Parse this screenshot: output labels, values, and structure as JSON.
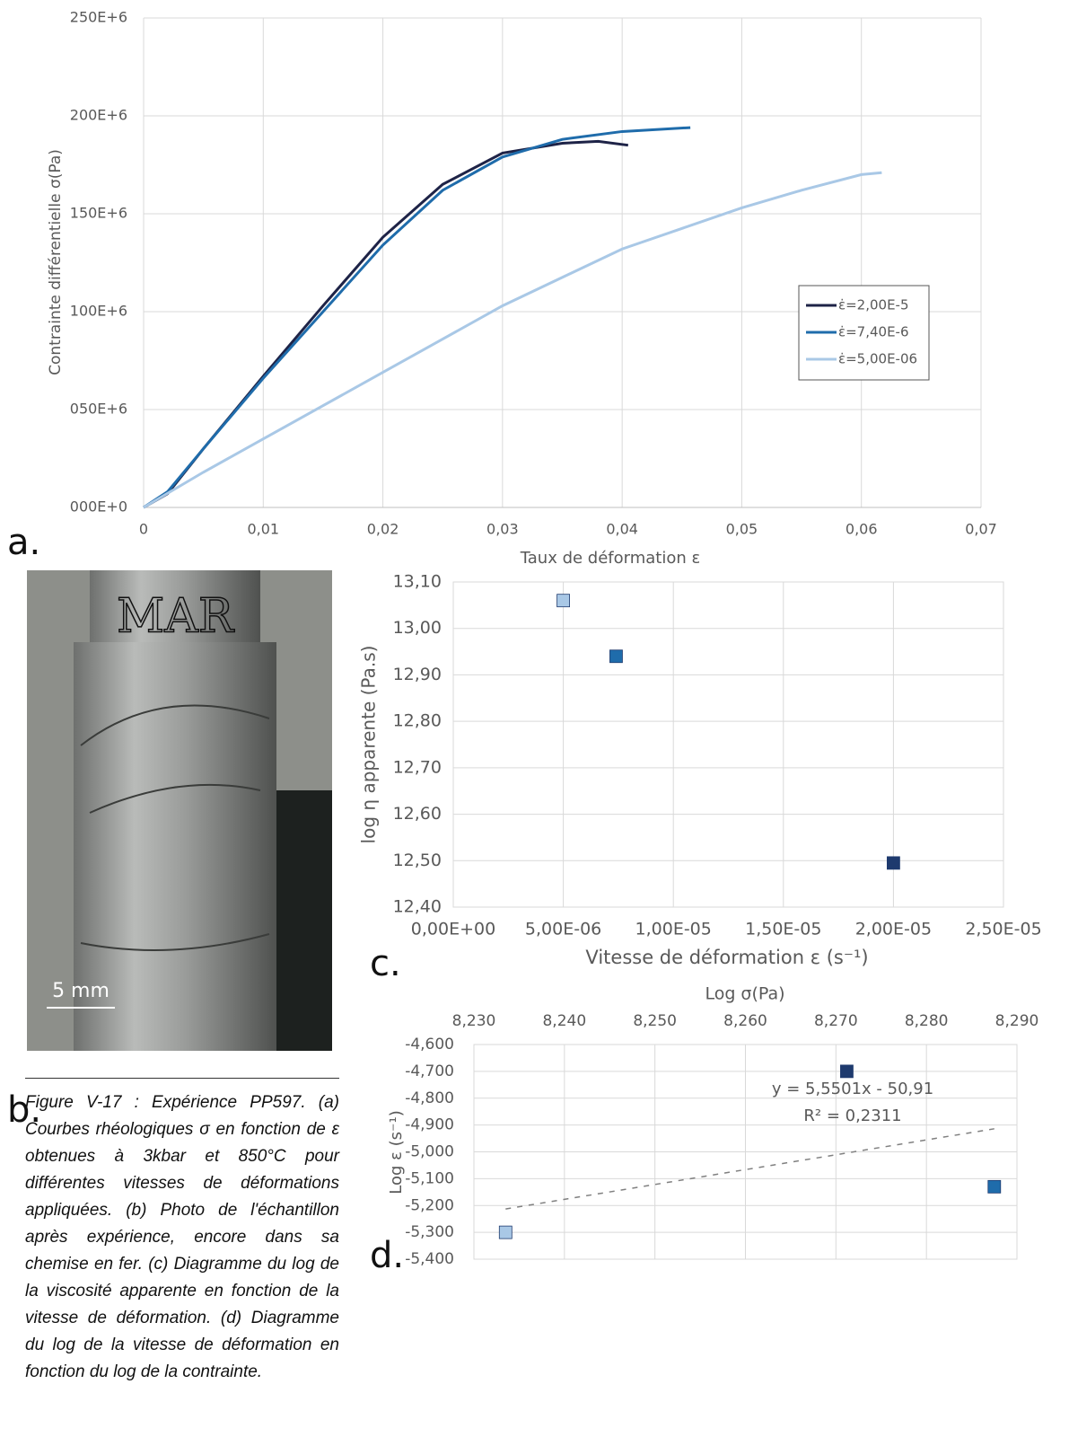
{
  "chart_data": [
    {
      "type": "line",
      "xlabel": "Taux de déformation ε",
      "ylabel": "Contrainte différentielle σ(Pa)",
      "xlim": [
        0,
        0.07
      ],
      "xticks": [
        0,
        {
          "value": 0.01,
          "label": "0,01"
        },
        {
          "value": 0.02,
          "label": "0,02"
        },
        {
          "value": 0.03,
          "label": "0,03"
        },
        {
          "value": 0.04,
          "label": "0,04"
        },
        {
          "value": 0.05,
          "label": "0,05"
        },
        {
          "value": 0.06,
          "label": "0,06"
        },
        {
          "value": 0.07,
          "label": "0,07"
        }
      ],
      "ylim": [
        0,
        250000000
      ],
      "yticks": [
        {
          "value": 0,
          "label": "000E+0"
        },
        {
          "value": 50000000,
          "label": "050E+6"
        },
        {
          "value": 100000000,
          "label": "100E+6"
        },
        {
          "value": 150000000,
          "label": "150E+6"
        },
        {
          "value": 200000000,
          "label": "200E+6"
        },
        {
          "value": 250000000,
          "label": "250E+6"
        }
      ],
      "grid": true,
      "legend": "right",
      "series": [
        {
          "name": "ε̇=2,00E-5",
          "color": "#1e2347",
          "x": [
            0,
            0.002,
            0.005,
            0.01,
            0.015,
            0.02,
            0.025,
            0.03,
            0.035,
            0.038,
            0.0405
          ],
          "values": [
            0,
            7000000,
            30000000,
            67000000,
            103000000,
            138000000,
            165000000,
            181000000,
            186000000,
            187000000,
            185000000
          ]
        },
        {
          "name": "ε̇=7,40E-6",
          "color": "#1f6cab",
          "x": [
            0,
            0.002,
            0.005,
            0.01,
            0.015,
            0.02,
            0.025,
            0.03,
            0.035,
            0.04,
            0.0457
          ],
          "values": [
            0,
            8000000,
            30000000,
            66000000,
            100000000,
            134000000,
            162000000,
            179000000,
            188000000,
            192000000,
            194000000
          ]
        },
        {
          "name": "ε̇=5,00E-06",
          "color": "#a9c8e6",
          "x": [
            0,
            0.005,
            0.01,
            0.02,
            0.03,
            0.04,
            0.05,
            0.055,
            0.06,
            0.0617
          ],
          "values": [
            0,
            18000000,
            35000000,
            69000000,
            103000000,
            132000000,
            153000000,
            162000000,
            170000000,
            171000000
          ]
        }
      ]
    },
    {
      "type": "scatter",
      "xlabel": "Vitesse de déformation ε (s⁻¹)",
      "ylabel": "log η apparente (Pa.s)",
      "xlim": [
        0,
        2.5e-05
      ],
      "xticks": [
        {
          "value": 0,
          "label": "0,00E+00"
        },
        {
          "value": 5e-06,
          "label": "5,00E-06"
        },
        {
          "value": 1e-05,
          "label": "1,00E-05"
        },
        {
          "value": 1.5e-05,
          "label": "1,50E-05"
        },
        {
          "value": 2e-05,
          "label": "2,00E-05"
        },
        {
          "value": 2.5e-05,
          "label": "2,50E-05"
        }
      ],
      "ylim": [
        12.4,
        13.1
      ],
      "yticks": [
        {
          "value": 12.4,
          "label": "12,40"
        },
        {
          "value": 12.5,
          "label": "12,50"
        },
        {
          "value": 12.6,
          "label": "12,60"
        },
        {
          "value": 12.7,
          "label": "12,70"
        },
        {
          "value": 12.8,
          "label": "12,80"
        },
        {
          "value": 12.9,
          "label": "12,90"
        },
        {
          "value": 13.0,
          "label": "13,00"
        },
        {
          "value": 13.1,
          "label": "13,10"
        }
      ],
      "grid": true,
      "x": [
        5e-06,
        7.4e-06,
        2e-05
      ],
      "values": [
        13.06,
        12.94,
        12.495
      ],
      "colors": [
        "#a9c8e6",
        "#1f6cab",
        "#1e3a6e"
      ]
    },
    {
      "type": "scatter",
      "xlabel": "Log σ(Pa)",
      "ylabel": "Log ε (s⁻¹)",
      "xaxis_position": "top",
      "xlim": [
        8.23,
        8.29
      ],
      "xticks": [
        {
          "value": 8.23,
          "label": "8,230"
        },
        {
          "value": 8.24,
          "label": "8,240"
        },
        {
          "value": 8.25,
          "label": "8,250"
        },
        {
          "value": 8.26,
          "label": "8,260"
        },
        {
          "value": 8.27,
          "label": "8,270"
        },
        {
          "value": 8.28,
          "label": "8,280"
        },
        {
          "value": 8.29,
          "label": "8,290"
        }
      ],
      "ylim": [
        -5.4,
        -4.6
      ],
      "yticks": [
        {
          "value": -5.4,
          "label": "-5,400"
        },
        {
          "value": -5.3,
          "label": "-5,300"
        },
        {
          "value": -5.2,
          "label": "-5,200"
        },
        {
          "value": -5.1,
          "label": "-5,100"
        },
        {
          "value": -5.0,
          "label": "-5,000"
        },
        {
          "value": -4.9,
          "label": "-4,900"
        },
        {
          "value": -4.8,
          "label": "-4,800"
        },
        {
          "value": -4.7,
          "label": "-4,700"
        },
        {
          "value": -4.6,
          "label": "-4,600"
        }
      ],
      "grid": true,
      "x": [
        8.2335,
        8.2712,
        8.2875
      ],
      "values": [
        -5.3,
        -4.7,
        -5.13
      ],
      "colors": [
        "#a9c8e6",
        "#1e3a6e",
        "#1f6cab"
      ],
      "trendline": {
        "x": [
          8.2335,
          8.2875
        ],
        "values": [
          -5.213,
          -4.914
        ],
        "color": "#808080"
      },
      "annotations": [
        "y = 5,5501x - 50,91",
        "R² = 0,2311"
      ]
    }
  ],
  "panel_labels": [
    "a.",
    "b.",
    "c.",
    "d."
  ],
  "photo": {
    "inscription": "MAR",
    "scale_bar": "5 mm"
  },
  "caption": "Figure V-17 : Expérience PP597. (a) Courbes rhéologiques σ en fonction de ε obtenues à 3kbar et 850°C pour différentes vitesses de déformations appliquées. (b) Photo de l'échantillon après expérience, encore dans sa chemise en fer. (c) Diagramme du log de la viscosité apparente en fonction de la vitesse de déformation. (d) Diagramme du log de la vitesse de déformation en fonction du log de la contrainte."
}
